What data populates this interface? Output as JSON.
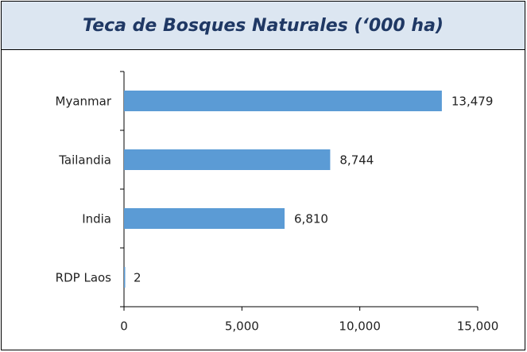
{
  "chart_data": {
    "type": "bar",
    "orientation": "horizontal",
    "title": "Teca de Bosques Naturales (‘000 ha)",
    "categories": [
      "Myanmar",
      "Tailandia",
      "India",
      "RDP Laos"
    ],
    "values": [
      13479,
      8744,
      6810,
      2
    ],
    "value_labels": [
      "13,479",
      "8,744",
      "6,810",
      "2"
    ],
    "color": "#5b9bd5",
    "xlim": [
      0,
      15000
    ],
    "xticks": [
      0,
      {
        "value": 5000,
        "label": "5,000"
      },
      {
        "value": 10000,
        "label": "10,000"
      },
      {
        "value": 15000,
        "label": "15,000"
      }
    ],
    "grid": false
  }
}
